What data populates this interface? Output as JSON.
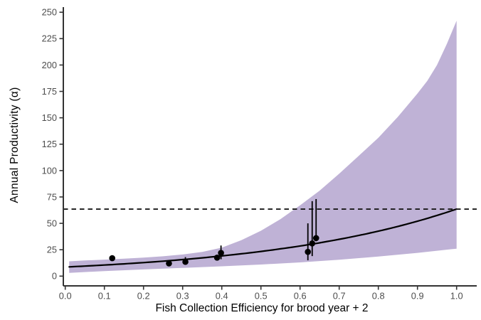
{
  "figure": {
    "background": "#ffffff",
    "spine_color": "#333333",
    "tick_color": "#333333",
    "tick_label_color": "#4d4d4d",
    "axis_title_color": "#000000",
    "ribbon_color": "#BFB2D6",
    "curve_color": "#000000",
    "point_color": "#000000",
    "dashed_line_color": "#1a1a1a"
  },
  "chart_data": {
    "type": "line",
    "title": "",
    "xlabel": "Fish Collection Efficiency for brood year + 2",
    "ylabel": "Annual Productivity (α)",
    "xlim": [
      0.0,
      1.0
    ],
    "ylim": [
      0,
      250
    ],
    "grid": false,
    "legend": "none",
    "x_ticks": [
      {
        "v": 0.0,
        "label": "0.0"
      },
      {
        "v": 0.1,
        "label": "0.1"
      },
      {
        "v": 0.2,
        "label": "0.2"
      },
      {
        "v": 0.3,
        "label": "0.3"
      },
      {
        "v": 0.4,
        "label": "0.4"
      },
      {
        "v": 0.5,
        "label": "0.5"
      },
      {
        "v": 0.6,
        "label": "0.6"
      },
      {
        "v": 0.7,
        "label": "0.7"
      },
      {
        "v": 0.8,
        "label": "0.8"
      },
      {
        "v": 0.9,
        "label": "0.9"
      },
      {
        "v": 1.0,
        "label": "1.0"
      }
    ],
    "y_ticks": [
      {
        "v": 0,
        "label": "0"
      },
      {
        "v": 25,
        "label": "25"
      },
      {
        "v": 50,
        "label": "50"
      },
      {
        "v": 75,
        "label": "75"
      },
      {
        "v": 100,
        "label": "100"
      },
      {
        "v": 125,
        "label": "125"
      },
      {
        "v": 150,
        "label": "150"
      },
      {
        "v": 175,
        "label": "175"
      },
      {
        "v": 200,
        "label": "200"
      },
      {
        "v": 225,
        "label": "225"
      },
      {
        "v": 250,
        "label": "250"
      }
    ],
    "reference_line": {
      "y": 63.5,
      "style": "dashed"
    },
    "fit_curve": {
      "type": "exponential",
      "equation": "y = a*exp(b*x)",
      "a": 8.6,
      "b": 2.0,
      "x_start": 0.01,
      "x_end": 1.0,
      "y_start": 8.8,
      "y_end": 63.5
    },
    "ribbon": {
      "description": "credible interval band",
      "top": [
        [
          0.01,
          14
        ],
        [
          0.05,
          14.8
        ],
        [
          0.1,
          15.6
        ],
        [
          0.15,
          16.5
        ],
        [
          0.2,
          17.6
        ],
        [
          0.25,
          18.8
        ],
        [
          0.3,
          20.5
        ],
        [
          0.35,
          23
        ],
        [
          0.4,
          27
        ],
        [
          0.45,
          34
        ],
        [
          0.5,
          43
        ],
        [
          0.55,
          54
        ],
        [
          0.6,
          67
        ],
        [
          0.65,
          81
        ],
        [
          0.7,
          97
        ],
        [
          0.75,
          114
        ],
        [
          0.8,
          131
        ],
        [
          0.85,
          151
        ],
        [
          0.9,
          173
        ],
        [
          0.925,
          185
        ],
        [
          0.95,
          200
        ],
        [
          0.975,
          220
        ],
        [
          1.0,
          242
        ]
      ],
      "bottom": [
        [
          0.01,
          3
        ],
        [
          0.1,
          4.8
        ],
        [
          0.2,
          6.3
        ],
        [
          0.3,
          7.8
        ],
        [
          0.4,
          9.3
        ],
        [
          0.5,
          11
        ],
        [
          0.6,
          13
        ],
        [
          0.7,
          15.5
        ],
        [
          0.8,
          18.5
        ],
        [
          0.9,
          22
        ],
        [
          1.0,
          26
        ]
      ]
    },
    "observations": [
      {
        "x": 0.12,
        "y": 17,
        "ci_low": null,
        "ci_high": null
      },
      {
        "x": 0.265,
        "y": 12,
        "ci_low": null,
        "ci_high": null
      },
      {
        "x": 0.307,
        "y": 13.5,
        "ci_low": 11,
        "ci_high": 18
      },
      {
        "x": 0.388,
        "y": 17.5,
        "ci_low": null,
        "ci_high": null
      },
      {
        "x": 0.398,
        "y": 22,
        "ci_low": 16,
        "ci_high": 29
      },
      {
        "x": 0.62,
        "y": 23,
        "ci_low": 15,
        "ci_high": 50
      },
      {
        "x": 0.631,
        "y": 31,
        "ci_low": 19,
        "ci_high": 71
      },
      {
        "x": 0.641,
        "y": 36,
        "ci_low": 33,
        "ci_high": 73
      }
    ]
  }
}
